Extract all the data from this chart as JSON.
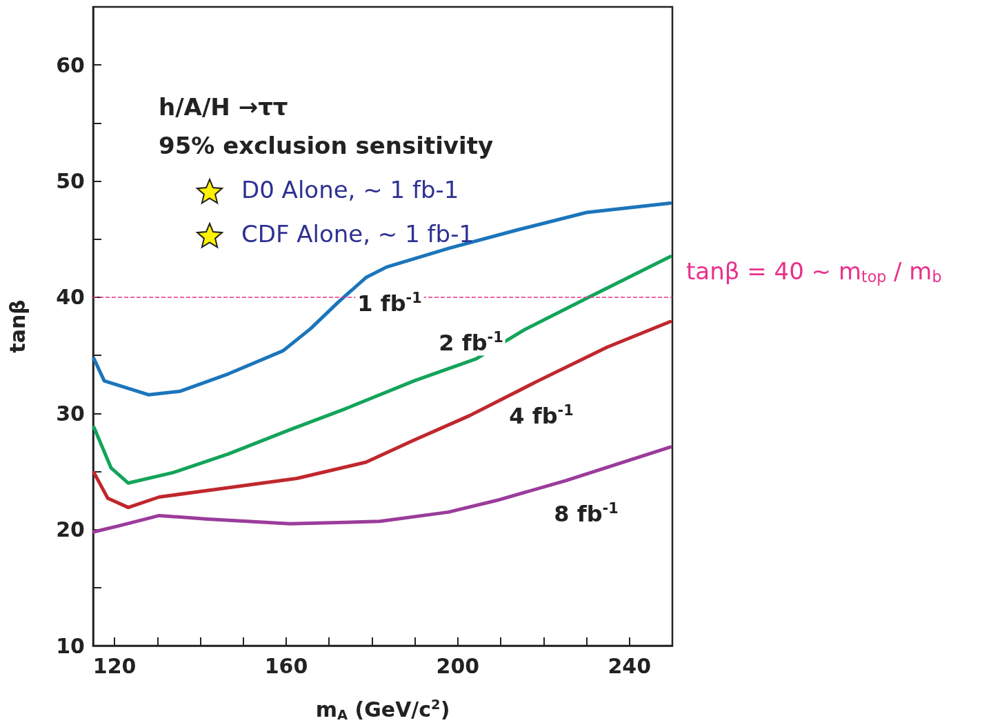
{
  "chart_data": {
    "type": "line",
    "xlabel": "m$_{A}$ (GeV/c$^{2}$)",
    "ylabel": "tanβ",
    "xlim": [
      115,
      250
    ],
    "xticks": [
      120,
      {
        "value": 130,
        "label": null
      },
      {
        "value": 140,
        "label": null
      },
      {
        "value": 150,
        "label": null
      },
      160,
      {
        "value": 170,
        "label": null
      },
      {
        "value": 180,
        "label": null
      },
      {
        "value": 190,
        "label": null
      },
      200,
      {
        "value": 210,
        "label": null
      },
      {
        "value": 220,
        "label": null
      },
      {
        "value": 230,
        "label": null
      },
      240
    ],
    "ylim": [
      10,
      65
    ],
    "yticks": [
      10,
      {
        "value": 15,
        "label": null
      },
      20,
      {
        "value": 25,
        "label": null
      },
      30,
      {
        "value": 35,
        "label": null
      },
      40,
      {
        "value": 45,
        "label": null
      },
      50,
      {
        "value": 55,
        "label": null
      },
      60
    ],
    "grid": false,
    "marker": "none",
    "line_style": "solid",
    "series": [
      {
        "color": "#1b75bb",
        "x": [
          115.2,
          117.6,
          128,
          135.2,
          146.5,
          159.3,
          165.7,
          172.2,
          178.6,
          183.4,
          197.8,
          213.9,
          230,
          249.5
        ],
        "values": [
          34.7,
          32.8,
          31.6,
          31.9,
          33.4,
          35.4,
          37.3,
          39.6,
          41.7,
          42.6,
          44.2,
          45.8,
          47.3,
          48.1
        ]
      },
      {
        "color": "#13a45a",
        "x": [
          115.2,
          119.2,
          123.2,
          133.6,
          146.5,
          160.9,
          173.8,
          189.8,
          204.3,
          215.5,
          230,
          249.5
        ],
        "values": [
          28.8,
          25.3,
          24.0,
          24.9,
          26.5,
          28.6,
          30.4,
          32.8,
          34.7,
          37.2,
          39.9,
          43.5
        ]
      },
      {
        "color": "#c0272d",
        "x": [
          115.2,
          118.4,
          123.2,
          130.4,
          146.5,
          162.5,
          178.6,
          189.8,
          202.7,
          218.7,
          234.8,
          249.5
        ],
        "values": [
          24.9,
          22.7,
          21.9,
          22.8,
          23.6,
          24.4,
          25.8,
          27.7,
          29.8,
          32.8,
          35.7,
          37.9
        ]
      },
      {
        "color": "#9b3c9b",
        "x": [
          115.2,
          120.8,
          130.4,
          141.7,
          160.9,
          181.8,
          197.8,
          209,
          225.1,
          249.5
        ],
        "values": [
          19.8,
          20.3,
          21.2,
          20.9,
          20.5,
          20.7,
          21.5,
          22.5,
          24.2,
          27.1
        ]
      }
    ],
    "ref_lines": [
      {
        "axis": "y",
        "value": 40,
        "label": "tanβ = 40 ~ m$_{top}$ / m$_{b}$",
        "color": "#e8318a",
        "line_style": "dashed"
      }
    ],
    "annotations": [
      "h/A/H →ττ",
      "95% exclusion sensitivity",
      "D0 Alone, ~ 1 fb-1",
      "CDF Alone, ~ 1 fb-1",
      "1 fb$^{-1}$",
      "2 fb$^{-1}$",
      "4 fb$^{-1}$",
      "8 fb$^{-1}$"
    ]
  }
}
